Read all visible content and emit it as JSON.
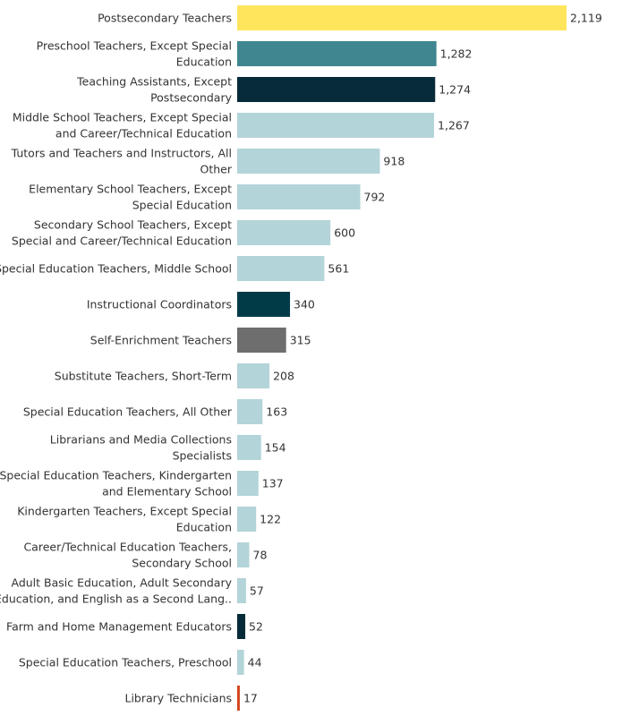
{
  "chart_data": {
    "type": "bar",
    "orientation": "horizontal",
    "title": "",
    "xlabel": "",
    "ylabel": "",
    "xlim": [
      0,
      2119
    ],
    "grid": false,
    "legend": "none",
    "categories": [
      "Postsecondary Teachers",
      "Preschool Teachers, Except Special Education",
      "Teaching Assistants, Except Postsecondary",
      "Middle School Teachers, Except Special and Career/Technical Education",
      "Tutors and Teachers and Instructors, All Other",
      "Elementary School Teachers, Except Special Education",
      "Secondary School Teachers, Except Special and Career/Technical Education",
      "Special Education Teachers, Middle School",
      "Instructional Coordinators",
      "Self-Enrichment Teachers",
      "Substitute Teachers, Short-Term",
      "Special Education Teachers, All Other",
      "Librarians and Media Collections Specialists",
      "Special Education Teachers, Kindergarten and Elementary School",
      "Kindergarten Teachers, Except Special Education",
      "Career/Technical Education Teachers, Secondary School",
      "Adult Basic Education, Adult Secondary Education, and English as a Second Lang..",
      "Farm and Home Management Educators",
      "Special Education Teachers, Preschool",
      "Library Technicians"
    ],
    "label_lines": [
      [
        "Postsecondary Teachers"
      ],
      [
        "Preschool Teachers, Except Special",
        "Education"
      ],
      [
        "Teaching Assistants, Except",
        "Postsecondary"
      ],
      [
        "Middle School Teachers, Except Special",
        "and Career/Technical Education"
      ],
      [
        "Tutors and Teachers and Instructors, All",
        "Other"
      ],
      [
        "Elementary School Teachers, Except",
        "Special Education"
      ],
      [
        "Secondary School Teachers, Except",
        "Special and Career/Technical Education"
      ],
      [
        "Special Education Teachers, Middle School"
      ],
      [
        "Instructional Coordinators"
      ],
      [
        "Self-Enrichment Teachers"
      ],
      [
        "Substitute Teachers, Short-Term"
      ],
      [
        "Special Education Teachers, All Other"
      ],
      [
        "Librarians and Media Collections",
        "Specialists"
      ],
      [
        "Special Education Teachers, Kindergarten",
        "and Elementary School"
      ],
      [
        "Kindergarten Teachers, Except Special",
        "Education"
      ],
      [
        "Career/Technical Education Teachers,",
        "Secondary School"
      ],
      [
        "Adult Basic Education, Adult Secondary",
        "Education, and English as a Second Lang.."
      ],
      [
        "Farm and Home Management Educators"
      ],
      [
        "Special Education Teachers, Preschool"
      ],
      [
        "Library Technicians"
      ]
    ],
    "values": [
      2119,
      1282,
      1274,
      1267,
      918,
      792,
      600,
      561,
      340,
      315,
      208,
      163,
      154,
      137,
      122,
      78,
      57,
      52,
      44,
      17
    ],
    "value_labels": [
      "2,119",
      "1,282",
      "1,274",
      "1,267",
      "918",
      "792",
      "600",
      "561",
      "340",
      "315",
      "208",
      "163",
      "154",
      "137",
      "122",
      "78",
      "57",
      "52",
      "44",
      "17"
    ],
    "colors": [
      "#ffe55c",
      "#3f8690",
      "#072b38",
      "#b3d4d9",
      "#b3d4d9",
      "#b3d4d9",
      "#b3d4d9",
      "#b3d4d9",
      "#013b48",
      "#6e6e6e",
      "#b3d4d9",
      "#b3d4d9",
      "#b3d4d9",
      "#b3d4d9",
      "#b3d4d9",
      "#b3d4d9",
      "#b3d4d9",
      "#072b38",
      "#b3d4d9",
      "#d3461e"
    ]
  }
}
